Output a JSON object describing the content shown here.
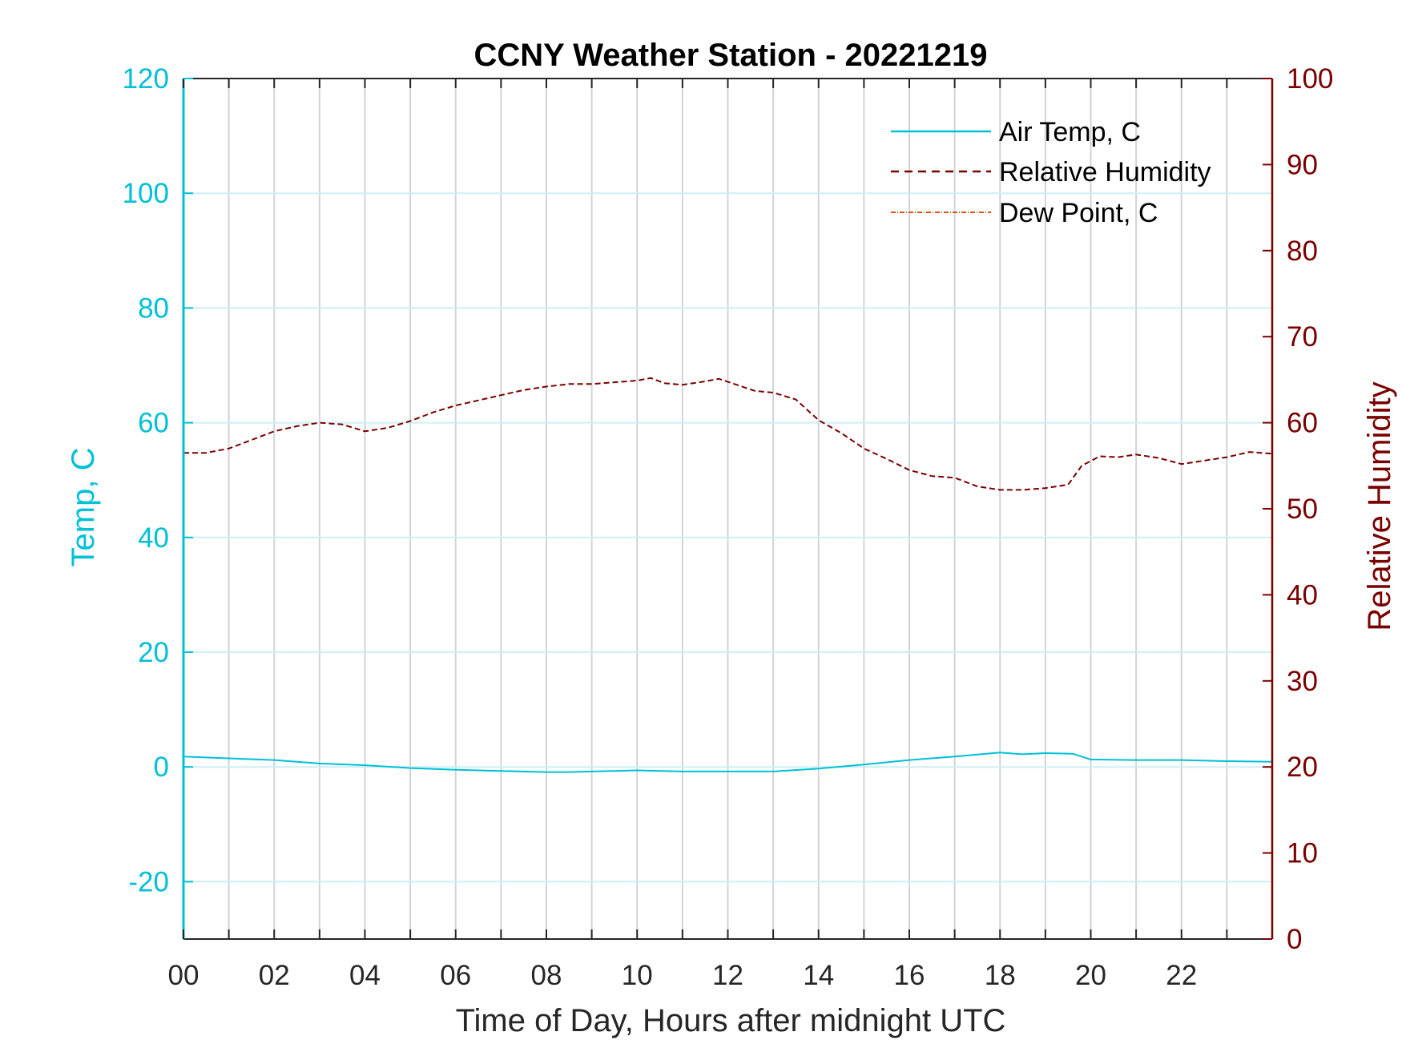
{
  "chart_data": {
    "type": "line",
    "title": "CCNY Weather Station - 20221219",
    "xlabel": "Time of Day, Hours after midnight UTC",
    "ylabel_left": "Temp, C",
    "ylabel_right": "Relative Humidity",
    "xlim": [
      0,
      24
    ],
    "ylim_left": [
      -30,
      120
    ],
    "ylim_right": [
      0,
      100
    ],
    "x_ticks": [
      0,
      2,
      4,
      6,
      8,
      10,
      12,
      14,
      16,
      18,
      20,
      22
    ],
    "x_tick_labels": [
      "00",
      "02",
      "04",
      "06",
      "08",
      "10",
      "12",
      "14",
      "16",
      "18",
      "20",
      "22"
    ],
    "y_left_ticks": [
      -20,
      0,
      20,
      40,
      60,
      80,
      100,
      120
    ],
    "y_right_ticks": [
      0,
      10,
      20,
      30,
      40,
      50,
      60,
      70,
      80,
      90,
      100
    ],
    "grid": true,
    "legend_position": "top-right",
    "colors": {
      "temp": "#00c0d8",
      "humidity": "#7a0000",
      "dewpoint": "#d95319",
      "grid_vertical": "#d0d4d8",
      "grid_horizontal": "#cdeff5",
      "axis": "#262626"
    },
    "series": [
      {
        "name": "Air Temp, C",
        "axis": "left",
        "style": "solid",
        "x": [
          0,
          1,
          2,
          3,
          4,
          5,
          6,
          7,
          8,
          8.5,
          9,
          10,
          11,
          12,
          13,
          14,
          15,
          16,
          17,
          18,
          18.5,
          19,
          19.6,
          20,
          21,
          22,
          23,
          24
        ],
        "y": [
          1.8,
          1.5,
          1.2,
          0.6,
          0.3,
          -0.2,
          -0.5,
          -0.7,
          -0.9,
          -0.9,
          -0.8,
          -0.6,
          -0.8,
          -0.8,
          -0.8,
          -0.3,
          0.4,
          1.2,
          1.8,
          2.5,
          2.2,
          2.4,
          2.3,
          1.3,
          1.2,
          1.2,
          1.0,
          0.9
        ]
      },
      {
        "name": "Relative Humidity",
        "axis": "right",
        "style": "dashed",
        "x": [
          0,
          0.5,
          1,
          1.5,
          2,
          2.5,
          3,
          3.5,
          4,
          4.5,
          5,
          5.5,
          6,
          6.5,
          7,
          7.5,
          8,
          8.5,
          9,
          9.5,
          10,
          10.3,
          10.6,
          11,
          11.5,
          11.8,
          12.2,
          12.6,
          13,
          13.5,
          14,
          14.5,
          15,
          15.5,
          16,
          16.5,
          17,
          17.5,
          18,
          18.5,
          19,
          19.5,
          19.8,
          20.2,
          20.6,
          21,
          21.5,
          22,
          22.5,
          23,
          23.5,
          24
        ],
        "y": [
          56.5,
          56.5,
          57.0,
          58.0,
          59.0,
          59.6,
          60.0,
          59.8,
          59.0,
          59.4,
          60.2,
          61.2,
          62.0,
          62.6,
          63.2,
          63.8,
          64.2,
          64.5,
          64.5,
          64.7,
          64.9,
          65.2,
          64.6,
          64.4,
          64.8,
          65.1,
          64.4,
          63.7,
          63.5,
          62.7,
          60.3,
          58.8,
          57.0,
          55.8,
          54.5,
          53.8,
          53.6,
          52.6,
          52.2,
          52.2,
          52.4,
          52.8,
          55.0,
          56.1,
          56.0,
          56.3,
          55.9,
          55.2,
          55.6,
          56.0,
          56.6,
          56.4
        ]
      },
      {
        "name": "Dew Point, C",
        "axis": "left",
        "style": "dashdot",
        "x": [],
        "y": []
      }
    ]
  }
}
